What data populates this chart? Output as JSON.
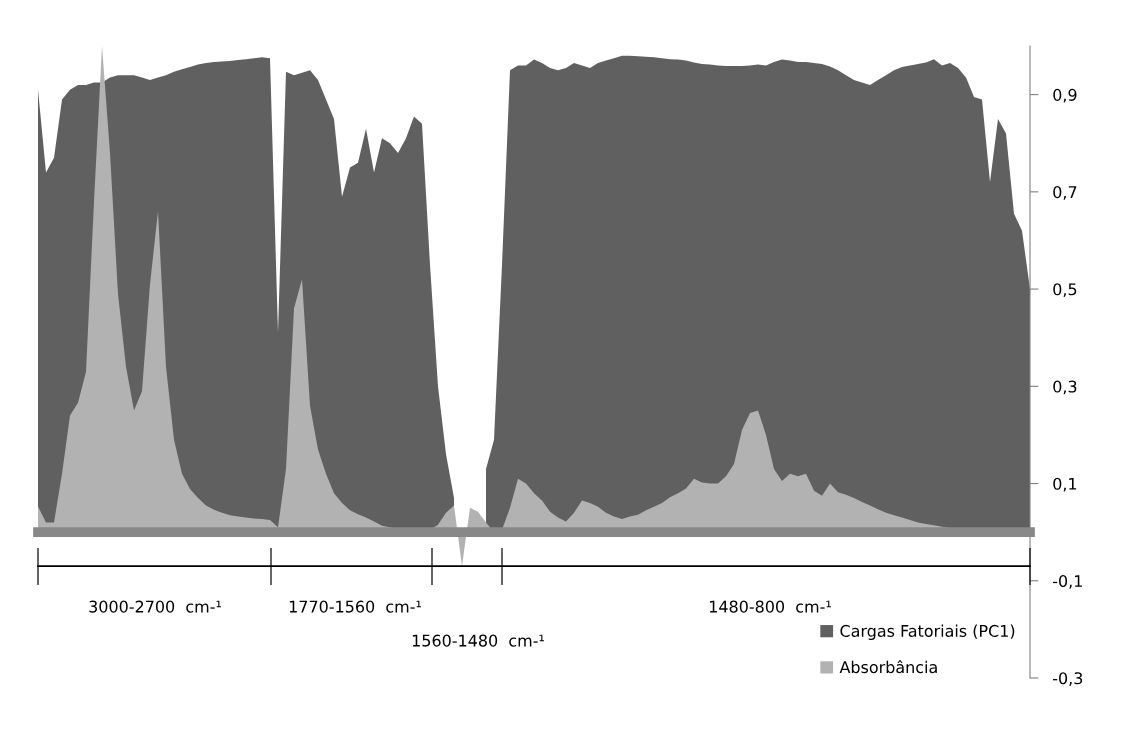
{
  "chart_data": {
    "type": "area",
    "categories": [
      null,
      null,
      null,
      null,
      null,
      null,
      null,
      null,
      null,
      null,
      null,
      null,
      null,
      null,
      null,
      null,
      null,
      null,
      null,
      null,
      null,
      null,
      null,
      null,
      null,
      null,
      null,
      null,
      null,
      null,
      null,
      null,
      null,
      null,
      null,
      null,
      null,
      null,
      null,
      null,
      null,
      null,
      null,
      null,
      null,
      null,
      null,
      null,
      null,
      null,
      null,
      null,
      null,
      null,
      null,
      null,
      null,
      null,
      null,
      null,
      null,
      null,
      null,
      null,
      null,
      null,
      null,
      null,
      null,
      null,
      null,
      null,
      null,
      null,
      null,
      null,
      null,
      null,
      null,
      null,
      null,
      null,
      null,
      null,
      null,
      null,
      null,
      null,
      null,
      null,
      null,
      null,
      null,
      null,
      null,
      null,
      null,
      null,
      null,
      null,
      null,
      null,
      null,
      null,
      null,
      null,
      null,
      null,
      null,
      null,
      null,
      null,
      null,
      null,
      null,
      null,
      null,
      null,
      null,
      null,
      null,
      null,
      null,
      null,
      null
    ],
    "series": [
      {
        "name": "Cargas Fatoriais (PC1)",
        "color": "#606060",
        "values": [
          0.91,
          0.74,
          0.77,
          0.89,
          0.91,
          0.92,
          0.92,
          0.925,
          0.925,
          0.935,
          0.94,
          0.94,
          0.94,
          0.935,
          0.93,
          0.935,
          0.94,
          0.947,
          0.952,
          0.957,
          0.962,
          0.965,
          0.967,
          0.968,
          0.969,
          0.971,
          0.973,
          0.975,
          0.977,
          0.975,
          0.41,
          0.947,
          0.94,
          0.945,
          0.95,
          0.93,
          0.89,
          0.85,
          0.69,
          0.75,
          0.76,
          0.83,
          0.74,
          0.81,
          0.8,
          0.78,
          0.81,
          0.855,
          0.84,
          0.55,
          0.3,
          0.16,
          0.07,
          null,
          null,
          null,
          0.13,
          0.19,
          0.55,
          0.95,
          0.96,
          0.96,
          0.972,
          0.965,
          0.955,
          0.95,
          0.955,
          0.965,
          0.96,
          0.955,
          0.965,
          0.97,
          0.975,
          0.98,
          0.98,
          0.979,
          0.978,
          0.977,
          0.975,
          0.973,
          0.972,
          0.97,
          0.966,
          0.963,
          0.962,
          0.96,
          0.959,
          0.959,
          0.959,
          0.96,
          0.962,
          0.96,
          0.967,
          0.972,
          0.97,
          0.967,
          0.967,
          0.965,
          0.963,
          0.958,
          0.95,
          0.94,
          0.93,
          0.925,
          0.92,
          0.93,
          0.94,
          0.95,
          0.957,
          0.96,
          0.963,
          0.966,
          0.973,
          0.96,
          0.965,
          0.955,
          0.935,
          0.895,
          0.89,
          0.72,
          0.85,
          0.82,
          0.655,
          0.62,
          0.5
        ]
      },
      {
        "name": "Absorbância",
        "color": "#b2b2b2",
        "values": [
          0.053,
          0.02,
          0.02,
          0.12,
          0.24,
          0.266,
          0.33,
          0.68,
          1.0,
          0.78,
          0.49,
          0.34,
          0.25,
          0.29,
          0.51,
          0.66,
          0.34,
          0.19,
          0.12,
          0.089,
          0.07,
          0.055,
          0.046,
          0.04,
          0.035,
          0.032,
          0.03,
          0.028,
          0.027,
          0.025,
          0.01,
          0.13,
          0.46,
          0.52,
          0.26,
          0.17,
          0.12,
          0.08,
          0.06,
          0.045,
          0.037,
          0.03,
          0.022,
          0.013,
          0.01,
          0.006,
          0.004,
          0.003,
          0.004,
          0.005,
          0.015,
          0.04,
          0.055,
          -0.07,
          0.05,
          0.042,
          0.02,
          0,
          0.005,
          0.05,
          0.11,
          0.1,
          0.08,
          0.065,
          0.042,
          0.03,
          0.022,
          0.04,
          0.065,
          0.06,
          0.052,
          0.04,
          0.032,
          0.027,
          0.032,
          0.036,
          0.045,
          0.052,
          0.06,
          0.072,
          0.08,
          0.09,
          0.11,
          0.102,
          0.1,
          0.1,
          0.115,
          0.14,
          0.21,
          0.245,
          0.25,
          0.2,
          0.13,
          0.105,
          0.12,
          0.115,
          0.12,
          0.085,
          0.075,
          0.1,
          0.082,
          0.077,
          0.07,
          0.062,
          0.055,
          0.047,
          0.04,
          0.035,
          0.03,
          0.025,
          0.02,
          0.017,
          0.014,
          0.011,
          0.008,
          0.006,
          0.005,
          0.004,
          0.004,
          0.003,
          0.003,
          0.003,
          0.002,
          0.002,
          0.002
        ]
      }
    ],
    "ylim": [
      -0.3,
      1.0
    ],
    "yticks": [
      {
        "value": -0.3,
        "label": "-0,3"
      },
      {
        "value": -0.1,
        "label": "-0,1"
      },
      {
        "value": 0.1,
        "label": "0,1"
      },
      {
        "value": 0.3,
        "label": "0,3"
      },
      {
        "value": 0.5,
        "label": "0,5"
      },
      {
        "value": 0.7,
        "label": "0,7"
      },
      {
        "value": 0.9,
        "label": "0,9"
      }
    ],
    "tick_labels": "y",
    "ref_lines": [
      {
        "axis": "y",
        "value": -0.07,
        "color": "#000000",
        "line_style": "solid"
      }
    ],
    "legend": "bottom right",
    "annotations": [
      "3000-2700  cm-¹",
      "1770-1560  cm-¹",
      "1560-1480  cm-¹",
      "1480-800  cm-¹"
    ]
  }
}
